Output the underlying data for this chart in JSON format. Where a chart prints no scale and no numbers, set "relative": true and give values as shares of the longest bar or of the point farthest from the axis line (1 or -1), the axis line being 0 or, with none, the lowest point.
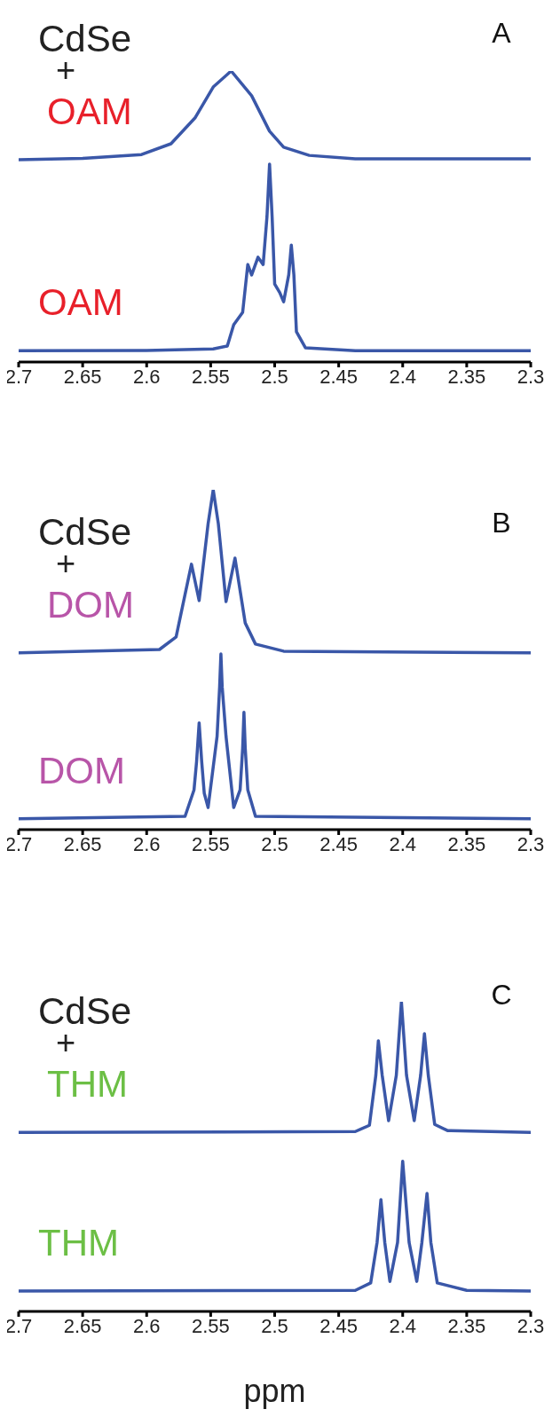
{
  "chart_data": [
    {
      "type": "line",
      "title": "A",
      "relative": true,
      "xlim": [
        2.7,
        2.3
      ],
      "xticks": [
        2.7,
        2.65,
        2.6,
        2.55,
        2.5,
        2.45,
        2.4,
        2.35,
        2.3
      ],
      "series": [
        {
          "name": "CdSe + OAM",
          "color": "#3a57a8",
          "x": [
            2.7,
            2.65,
            2.604,
            2.581,
            2.562,
            2.548,
            2.534,
            2.518,
            2.504,
            2.493,
            2.473,
            2.437,
            2.3
          ],
          "values": [
            0.695,
            0.7,
            0.713,
            0.75,
            0.84,
            0.945,
            1.0,
            0.915,
            0.793,
            0.738,
            0.71,
            0.698,
            0.698
          ]
        },
        {
          "name": "OAM",
          "color": "#3a57a8",
          "x": [
            2.7,
            2.6,
            2.548,
            2.537,
            2.532,
            2.525,
            2.521,
            2.518,
            2.513,
            2.509,
            2.506,
            2.504,
            2.502,
            2.5,
            2.496,
            2.493,
            2.489,
            2.487,
            2.485,
            2.483,
            2.476,
            2.437,
            2.3
          ],
          "values": [
            0.039,
            0.04,
            0.045,
            0.055,
            0.128,
            0.171,
            0.335,
            0.299,
            0.36,
            0.335,
            0.5,
            0.68,
            0.5,
            0.268,
            0.238,
            0.207,
            0.3,
            0.402,
            0.3,
            0.104,
            0.049,
            0.039,
            0.039
          ]
        }
      ]
    },
    {
      "type": "line",
      "title": "B",
      "relative": true,
      "xlim": [
        2.7,
        2.3
      ],
      "xticks": [
        2.7,
        2.65,
        2.6,
        2.55,
        2.5,
        2.45,
        2.4,
        2.35,
        2.3
      ],
      "series": [
        {
          "name": "CdSe + DOM",
          "color": "#3a57a8",
          "x": [
            2.7,
            2.59,
            2.577,
            2.57,
            2.565,
            2.559,
            2.552,
            2.548,
            2.544,
            2.538,
            2.531,
            2.523,
            2.515,
            2.493,
            2.3
          ],
          "values": [
            0.52,
            0.53,
            0.567,
            0.692,
            0.781,
            0.674,
            0.9,
            1.0,
            0.9,
            0.671,
            0.799,
            0.608,
            0.546,
            0.525,
            0.52
          ]
        },
        {
          "name": "DOM",
          "color": "#3a57a8",
          "x": [
            2.7,
            2.57,
            2.563,
            2.561,
            2.559,
            2.557,
            2.555,
            2.552,
            2.545,
            2.543,
            2.542,
            2.541,
            2.538,
            2.532,
            2.527,
            2.525,
            2.524,
            2.523,
            2.521,
            2.515,
            2.3
          ],
          "values": [
            0.032,
            0.039,
            0.117,
            0.2,
            0.314,
            0.2,
            0.107,
            0.065,
            0.274,
            0.42,
            0.517,
            0.42,
            0.274,
            0.065,
            0.117,
            0.24,
            0.345,
            0.24,
            0.117,
            0.039,
            0.032
          ]
        }
      ]
    },
    {
      "type": "line",
      "title": "C",
      "xlabel": "ppm",
      "relative": true,
      "xlim": [
        2.7,
        2.3
      ],
      "xticks": [
        2.7,
        2.65,
        2.6,
        2.55,
        2.5,
        2.45,
        2.4,
        2.35,
        2.3
      ],
      "series": [
        {
          "name": "CdSe + THM",
          "color": "#3a57a8",
          "x": [
            2.7,
            2.437,
            2.426,
            2.421,
            2.419,
            2.416,
            2.411,
            2.405,
            2.401,
            2.397,
            2.391,
            2.386,
            2.383,
            2.38,
            2.375,
            2.365,
            2.3
          ],
          "values": [
            0.578,
            0.581,
            0.601,
            0.762,
            0.874,
            0.762,
            0.616,
            0.762,
            1.0,
            0.762,
            0.616,
            0.762,
            0.897,
            0.762,
            0.604,
            0.584,
            0.578
          ]
        },
        {
          "name": "THM",
          "color": "#3a57a8",
          "x": [
            2.7,
            2.437,
            2.425,
            2.42,
            2.417,
            2.414,
            2.41,
            2.404,
            2.4,
            2.395,
            2.389,
            2.385,
            2.381,
            2.378,
            2.373,
            2.35,
            2.3
          ],
          "values": [
            0.066,
            0.068,
            0.092,
            0.223,
            0.361,
            0.223,
            0.097,
            0.223,
            0.485,
            0.223,
            0.097,
            0.223,
            0.381,
            0.223,
            0.092,
            0.068,
            0.066
          ]
        }
      ]
    }
  ]
}
